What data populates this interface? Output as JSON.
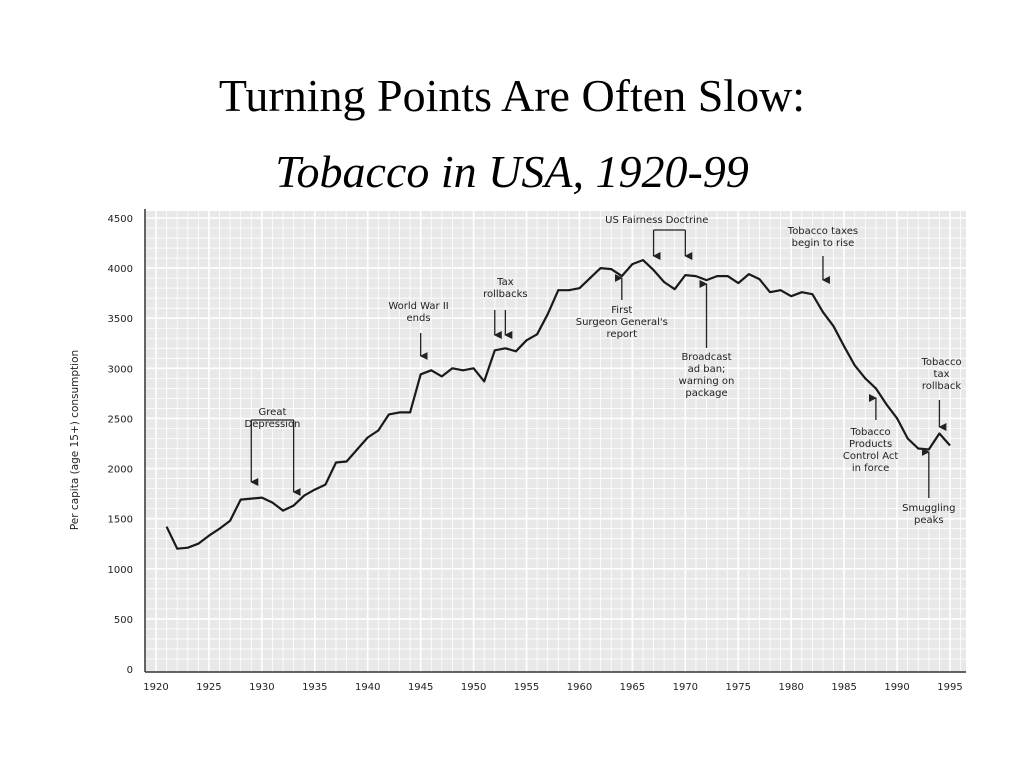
{
  "slide": {
    "title": "Turning Points Are Often Slow:",
    "subtitle": "Tobacco in USA, 1920-99"
  },
  "chart_data": {
    "type": "line",
    "title": "",
    "xlabel": "",
    "ylabel": "Per capita (age 15+) consumption",
    "xlim": [
      1918,
      1997
    ],
    "ylim": [
      0,
      4500
    ],
    "grid": true,
    "x_ticks": [
      1920,
      1925,
      1930,
      1935,
      1940,
      1945,
      1950,
      1955,
      1960,
      1965,
      1970,
      1975,
      1980,
      1985,
      1990,
      1995
    ],
    "y_ticks": [
      0,
      500,
      1000,
      1500,
      2000,
      2500,
      3000,
      3500,
      4000,
      4500
    ],
    "series": [
      {
        "x": [
          1921,
          1922,
          1923,
          1924,
          1925,
          1926,
          1927,
          1928,
          1929,
          1930,
          1931,
          1932,
          1933,
          1934,
          1935,
          1936,
          1937,
          1938,
          1939,
          1940,
          1941,
          1942,
          1943,
          1944,
          1945,
          1946,
          1947,
          1948,
          1949,
          1950,
          1951,
          1952,
          1953,
          1954,
          1955,
          1956,
          1957,
          1958,
          1959,
          1960,
          1961,
          1962,
          1963,
          1964,
          1965,
          1966,
          1967,
          1968,
          1969,
          1970,
          1971,
          1972,
          1973,
          1974,
          1975,
          1976,
          1977,
          1978,
          1979,
          1980,
          1981,
          1982,
          1983,
          1984,
          1985,
          1986,
          1987,
          1988,
          1989,
          1990,
          1991,
          1992,
          1993,
          1994,
          1995
        ],
        "values": [
          1420,
          1200,
          1210,
          1250,
          1330,
          1400,
          1480,
          1690,
          1700,
          1710,
          1660,
          1580,
          1630,
          1730,
          1790,
          1840,
          2060,
          2070,
          2190,
          2310,
          2380,
          2540,
          2560,
          2560,
          2940,
          2980,
          2920,
          3000,
          2980,
          3000,
          2870,
          3180,
          3200,
          3170,
          3280,
          3340,
          3540,
          3780,
          3780,
          3800,
          3900,
          4000,
          3990,
          3920,
          4040,
          4080,
          3980,
          3860,
          3790,
          3930,
          3920,
          3880,
          3920,
          3920,
          3850,
          3940,
          3890,
          3760,
          3780,
          3720,
          3760,
          3740,
          3560,
          3420,
          3220,
          3030,
          2900,
          2800,
          2640,
          2500,
          2300,
          2200,
          2190,
          2350,
          2230
        ]
      }
    ],
    "annotations": [
      {
        "lines": [
          "Great",
          "Depression"
        ]
      },
      {
        "lines": [
          "World War II",
          "ends"
        ]
      },
      {
        "lines": [
          "Tax",
          "rollbacks"
        ]
      },
      {
        "lines": [
          "US Fairness Doctrine"
        ]
      },
      {
        "lines": [
          "First",
          "Surgeon General's",
          "report"
        ]
      },
      {
        "lines": [
          "Broadcast",
          "ad ban;",
          "warning on",
          "package"
        ]
      },
      {
        "lines": [
          "Tobacco taxes",
          "begin to rise"
        ]
      },
      {
        "lines": [
          "Tobacco",
          "tax",
          "rollback"
        ]
      },
      {
        "lines": [
          "Tobacco",
          "Products",
          "Control Act",
          "in force"
        ]
      },
      {
        "lines": [
          "Smuggling",
          "peaks"
        ]
      }
    ],
    "colors": {
      "line": "#1a1a1a",
      "plot_background": "#e8e8e8",
      "grid": "#ffffff",
      "axis": "#333333"
    }
  }
}
